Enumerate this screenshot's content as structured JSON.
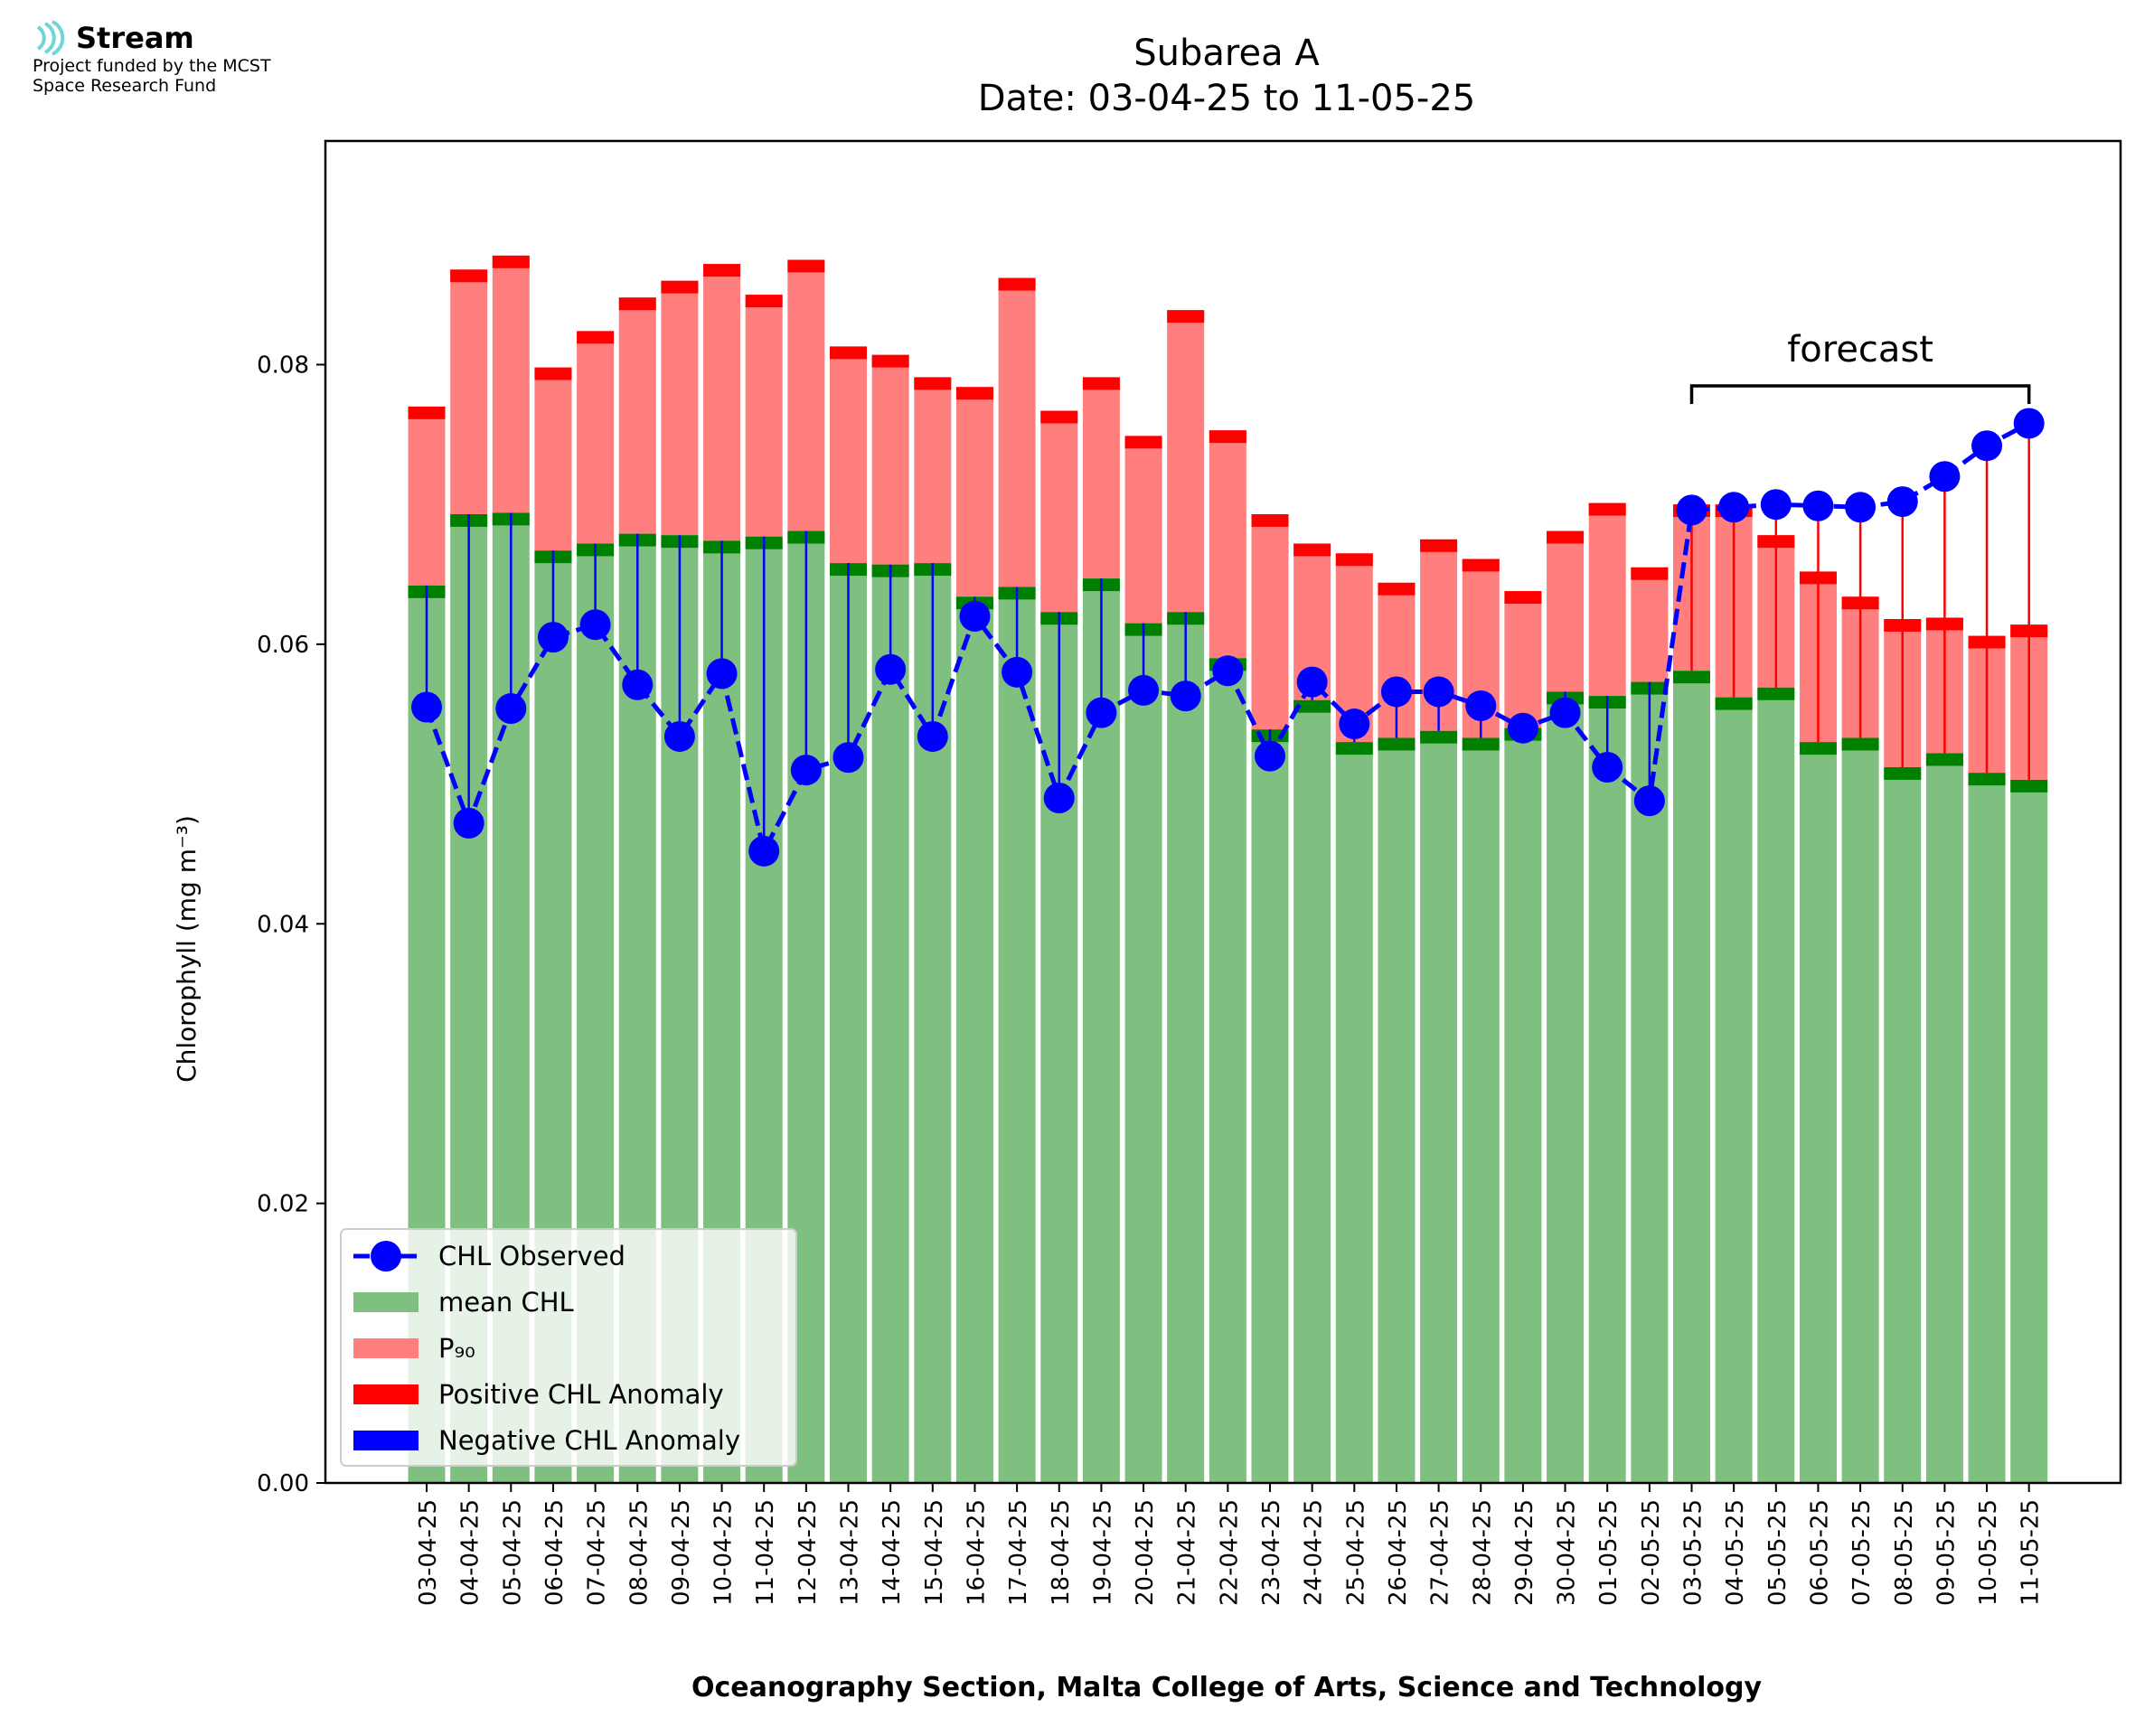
{
  "logo": {
    "name": "Stream",
    "line1": "Project funded by the MCST",
    "line2": "Space Research Fund"
  },
  "chart_data": {
    "type": "bar",
    "title": "Subarea A",
    "subtitle": "Date: 03-04-25 to 11-05-25",
    "xlabel": "Oceanography Section, Malta College of Arts, Science and Technology",
    "ylabel": "Chlorophyll (mg m⁻³)",
    "ylim": [
      0,
      0.096
    ],
    "yticks": [
      0.0,
      0.02,
      0.04,
      0.06,
      0.08
    ],
    "ytick_labels": [
      "0.00",
      "0.02",
      "0.04",
      "0.06",
      "0.08"
    ],
    "grid": false,
    "legend_position": "lower-left",
    "categories": [
      "03-04-25",
      "04-04-25",
      "05-04-25",
      "06-04-25",
      "07-04-25",
      "08-04-25",
      "09-04-25",
      "10-04-25",
      "11-04-25",
      "12-04-25",
      "13-04-25",
      "14-04-25",
      "15-04-25",
      "16-04-25",
      "17-04-25",
      "18-04-25",
      "19-04-25",
      "20-04-25",
      "21-04-25",
      "22-04-25",
      "23-04-25",
      "24-04-25",
      "25-04-25",
      "26-04-25",
      "27-04-25",
      "28-04-25",
      "29-04-25",
      "30-04-25",
      "01-05-25",
      "02-05-25",
      "03-05-25",
      "04-05-25",
      "05-05-25",
      "06-05-25",
      "07-05-25",
      "08-05-25",
      "09-05-25",
      "10-05-25",
      "11-05-25"
    ],
    "series": [
      {
        "name": "CHL Observed",
        "color": "#0000ff",
        "values": [
          0.0555,
          0.0472,
          0.0554,
          0.0605,
          0.0614,
          0.0571,
          0.0534,
          0.0579,
          0.0452,
          0.051,
          0.0519,
          0.0582,
          0.0534,
          0.062,
          0.058,
          0.049,
          0.0551,
          0.0567,
          0.0563,
          0.0581,
          0.052,
          0.0573,
          0.0543,
          0.0566,
          0.0566,
          0.0556,
          0.054,
          0.0551,
          0.0512,
          0.0488,
          0.0696,
          0.0698,
          0.07,
          0.0699,
          0.0698,
          0.0702,
          0.072,
          0.0742,
          0.0758
        ]
      },
      {
        "name": "mean CHL",
        "color": "#7fbf7f",
        "values": [
          0.0642,
          0.0693,
          0.0694,
          0.0667,
          0.0672,
          0.0679,
          0.0678,
          0.0674,
          0.0677,
          0.0681,
          0.0658,
          0.0657,
          0.0658,
          0.0634,
          0.0641,
          0.0623,
          0.0647,
          0.0615,
          0.0623,
          0.059,
          0.0539,
          0.056,
          0.053,
          0.0533,
          0.0538,
          0.0533,
          0.054,
          0.0566,
          0.0563,
          0.0573,
          0.0581,
          0.0562,
          0.0569,
          0.053,
          0.0533,
          0.0512,
          0.0522,
          0.0508,
          0.0503
        ]
      },
      {
        "name": "P₉₀",
        "color": "#ff7f7f",
        "values": [
          0.077,
          0.0868,
          0.0878,
          0.0798,
          0.0824,
          0.0848,
          0.086,
          0.0872,
          0.085,
          0.0875,
          0.0813,
          0.0807,
          0.0791,
          0.0784,
          0.0862,
          0.0767,
          0.0791,
          0.0749,
          0.0839,
          0.0753,
          0.0693,
          0.0672,
          0.0665,
          0.0644,
          0.0675,
          0.0661,
          0.0638,
          0.0681,
          0.0701,
          0.0655,
          0.07,
          0.07,
          0.0678,
          0.0652,
          0.0634,
          0.0618,
          0.0619,
          0.0606,
          0.0614
        ]
      }
    ],
    "legend": [
      "CHL Observed",
      "mean CHL",
      "P₉₀",
      "Positive CHL Anomaly",
      "Negative CHL Anomaly"
    ],
    "anomaly_colors": {
      "positive": "#ff0000",
      "negative": "#0000ff",
      "mean_cap": "#008000"
    },
    "forecast_label": "forecast",
    "forecast_start_index": 30
  }
}
